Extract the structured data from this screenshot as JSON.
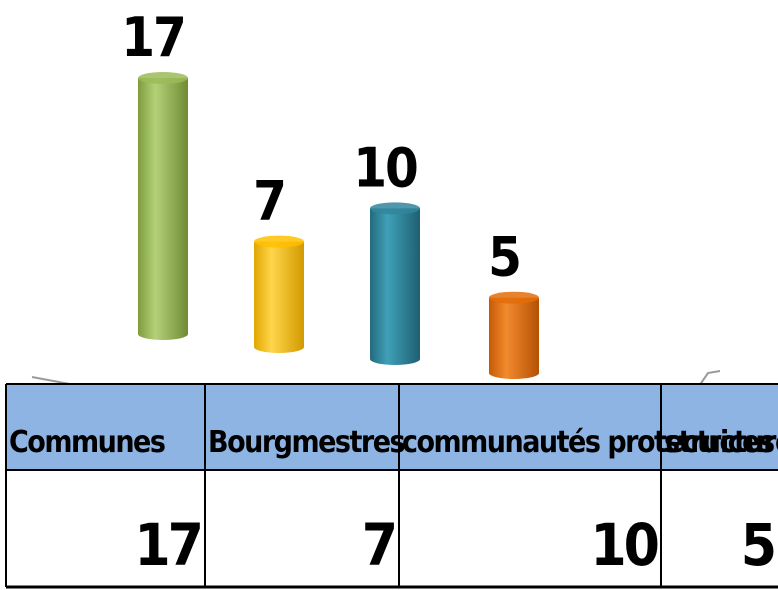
{
  "chart_data": {
    "type": "bar",
    "categories": [
      "Communes",
      "Bourgmestres",
      "communautés protectrices",
      "structures"
    ],
    "values": [
      17,
      7,
      10,
      5
    ],
    "ylim": [
      0,
      17
    ],
    "grid": false,
    "legend": "none",
    "colors": {
      "bars": [
        "#9bbb59",
        "#ffc000",
        "#31859c",
        "#e36c09"
      ],
      "header_fill": "#8db4e2",
      "grid_line": "#000000"
    }
  },
  "table": {
    "headers": [
      "Communes",
      "Bourgmestres",
      "communautés protectrices",
      "structures"
    ],
    "values": [
      "17",
      "7",
      "10",
      "5"
    ]
  }
}
